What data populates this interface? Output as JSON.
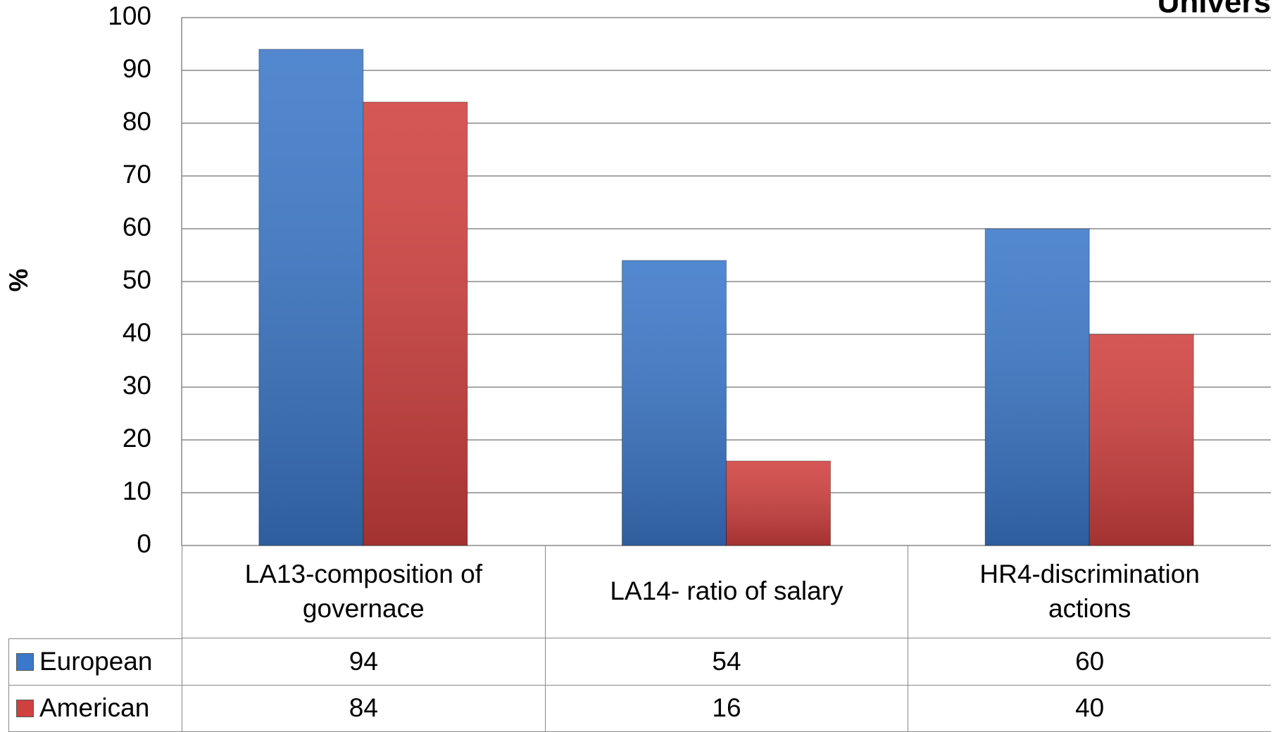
{
  "chart_data": {
    "type": "bar",
    "title": "Univers",
    "y_label": "%",
    "categories": [
      "LA13-composition of governace",
      "LA14- ratio of salary",
      "HR4-discrimination actions"
    ],
    "series": [
      {
        "name": "European",
        "color": "#3b78c9",
        "values": [
          94,
          54,
          60
        ]
      },
      {
        "name": "American",
        "color": "#d0403e",
        "values": [
          84,
          16,
          40
        ]
      }
    ],
    "ylim": [
      0,
      100
    ],
    "yticks": [
      0,
      10,
      20,
      30,
      40,
      50,
      60,
      70,
      80,
      90,
      100
    ],
    "grid": true,
    "data_table": true
  }
}
